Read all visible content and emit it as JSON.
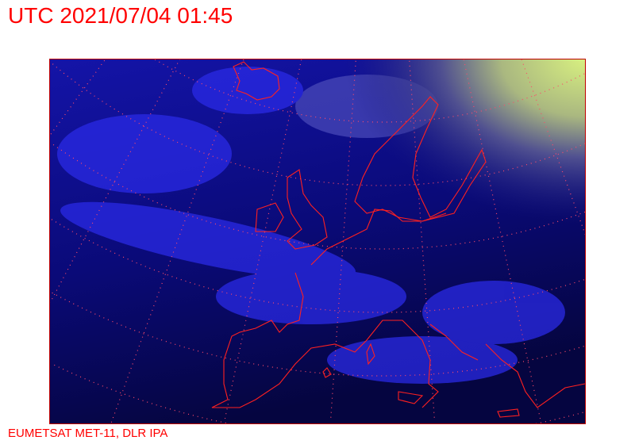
{
  "title": "UTC 2021/07/04 01:45",
  "credit": "EUMETSAT MET-11, DLR IPA",
  "map": {
    "type": "satellite-image",
    "region": "Europe",
    "colors": {
      "ocean_night": "#05054a",
      "cloud_night": "#2a2ae0",
      "daylight_cloud": "#c8e08a",
      "coastline": "#ff2020",
      "graticule": "#ff4060",
      "frame": "#c00000"
    }
  }
}
